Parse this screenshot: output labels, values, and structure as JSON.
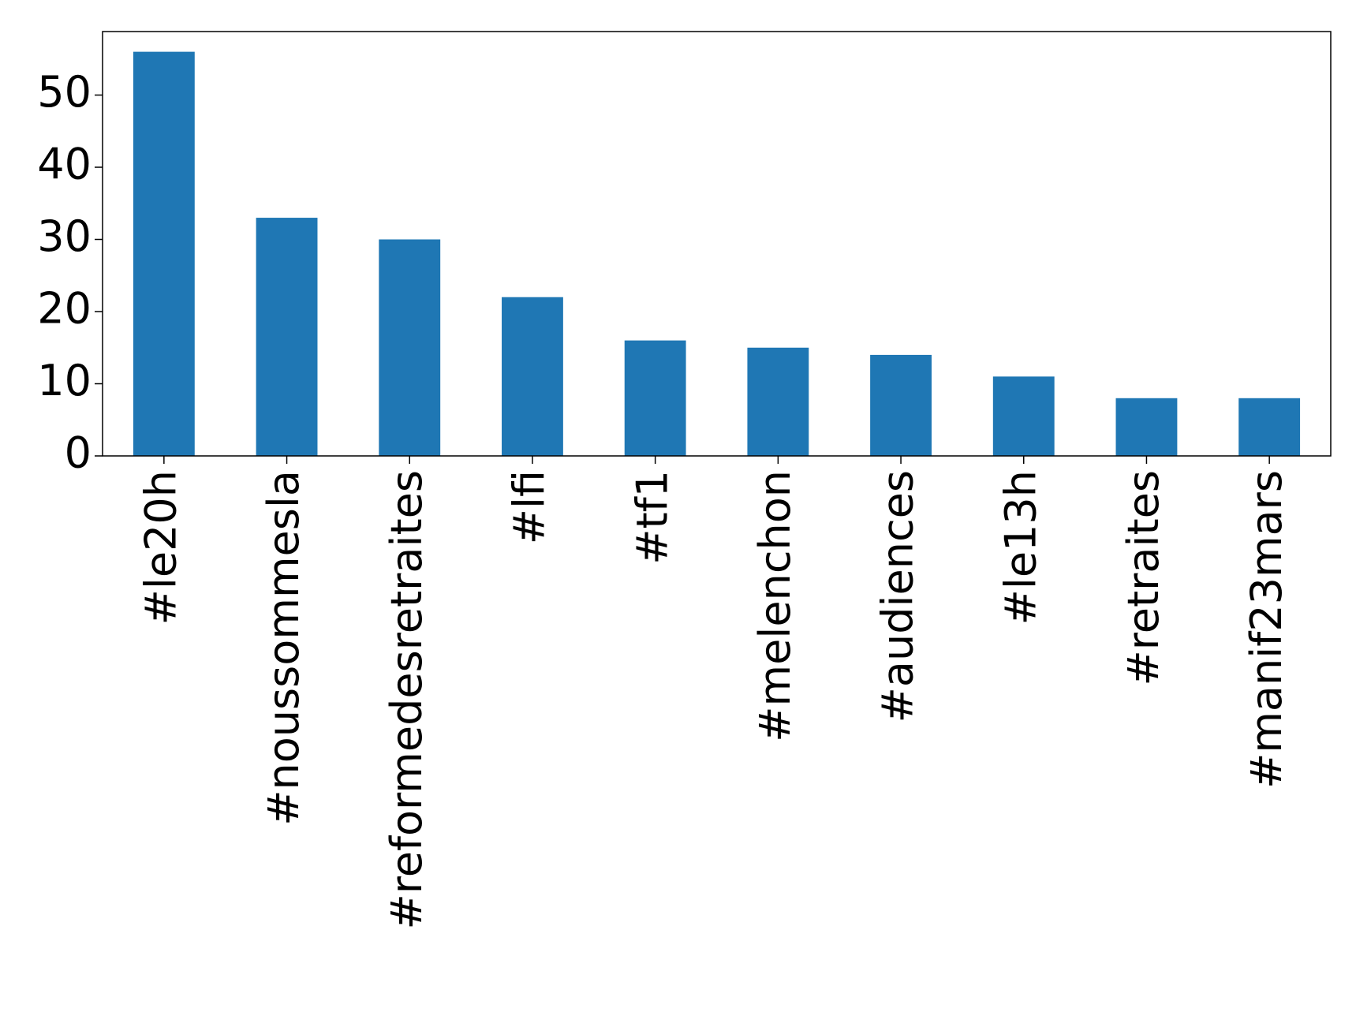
{
  "chart_data": {
    "type": "bar",
    "categories": [
      "#le20h",
      "#noussommesla",
      "#reformedesretraites",
      "#lfi",
      "#tf1",
      "#melenchon",
      "#audiences",
      "#le13h",
      "#retraites",
      "#manif23mars"
    ],
    "values": [
      56,
      33,
      30,
      22,
      16,
      15,
      14,
      11,
      8,
      8
    ],
    "color": "#1f77b4",
    "ylim": [
      0,
      58.8
    ],
    "yticks": [
      0,
      10,
      20,
      30,
      40,
      50
    ],
    "grid": false
  }
}
